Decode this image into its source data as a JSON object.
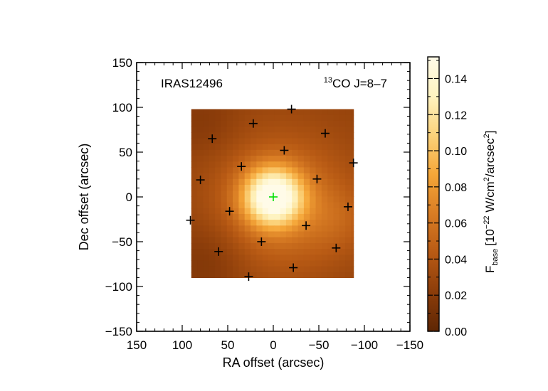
{
  "chart_data": {
    "type": "heatmap",
    "object_label": "IRAS12496",
    "line_label": {
      "isotope_superscript": "13",
      "molecule_and_transition": "CO J=8–7"
    },
    "xlabel": "RA offset (arcsec)",
    "ylabel": "Dec offset (arcsec)",
    "x_axis_reversed": true,
    "xlim": [
      150,
      -150
    ],
    "ylim": [
      -150,
      150
    ],
    "xticks": [
      150,
      100,
      50,
      0,
      -50,
      -100,
      -150
    ],
    "xtick_labels": [
      "150",
      "100",
      "50",
      "0",
      "−50",
      "−100",
      "−150"
    ],
    "yticks": [
      150,
      100,
      50,
      0,
      -50,
      -100,
      -150
    ],
    "ytick_labels": [
      "150",
      "100",
      "50",
      "0",
      "−50",
      "−100",
      "−150"
    ],
    "map_extent": {
      "ra": [
        90,
        -88
      ],
      "dec": [
        -90,
        98
      ]
    },
    "pixel_size_arcsec": 6.5,
    "peak": {
      "ra": 0,
      "dec": 0,
      "value": 0.152
    },
    "background_level": 0.025,
    "colorbar": {
      "label_quantity": "F",
      "label_subscript": "base",
      "label_units_prefix": "[10",
      "label_exponent": "−22",
      "label_units_mid": " W/cm",
      "label_units_sq": "2",
      "label_units_mid2": "/arcsec",
      "label_units_close": "]",
      "range": [
        0.0,
        0.152
      ],
      "ticks": [
        0.0,
        0.02,
        0.04,
        0.06,
        0.08,
        0.1,
        0.12,
        0.14
      ],
      "tick_labels": [
        "0.00",
        "0.02",
        "0.04",
        "0.06",
        "0.08",
        "0.10",
        "0.12",
        "0.14"
      ],
      "colormap_stops": [
        "#5e2604",
        "#8c3d0a",
        "#b85a14",
        "#d97d24",
        "#f5a638",
        "#fbd27a",
        "#fef3c0",
        "#fffbe8"
      ]
    },
    "central_pixel": {
      "ra": 0,
      "dec": 0,
      "color": "#00e000"
    },
    "detector_pixels": [
      {
        "ra": -20,
        "dec": 98
      },
      {
        "ra": 22,
        "dec": 82
      },
      {
        "ra": 67,
        "dec": 65
      },
      {
        "ra": -57,
        "dec": 71
      },
      {
        "ra": -12,
        "dec": 52
      },
      {
        "ra": 35,
        "dec": 34
      },
      {
        "ra": -88,
        "dec": 38
      },
      {
        "ra": 80,
        "dec": 19
      },
      {
        "ra": -48,
        "dec": 20
      },
      {
        "ra": 48,
        "dec": -16
      },
      {
        "ra": -82,
        "dec": -11
      },
      {
        "ra": 91,
        "dec": -26
      },
      {
        "ra": -36,
        "dec": -32
      },
      {
        "ra": 13,
        "dec": -50
      },
      {
        "ra": 60,
        "dec": -61
      },
      {
        "ra": -69,
        "dec": -57
      },
      {
        "ra": -22,
        "dec": -79
      },
      {
        "ra": 27,
        "dec": -89
      }
    ]
  }
}
